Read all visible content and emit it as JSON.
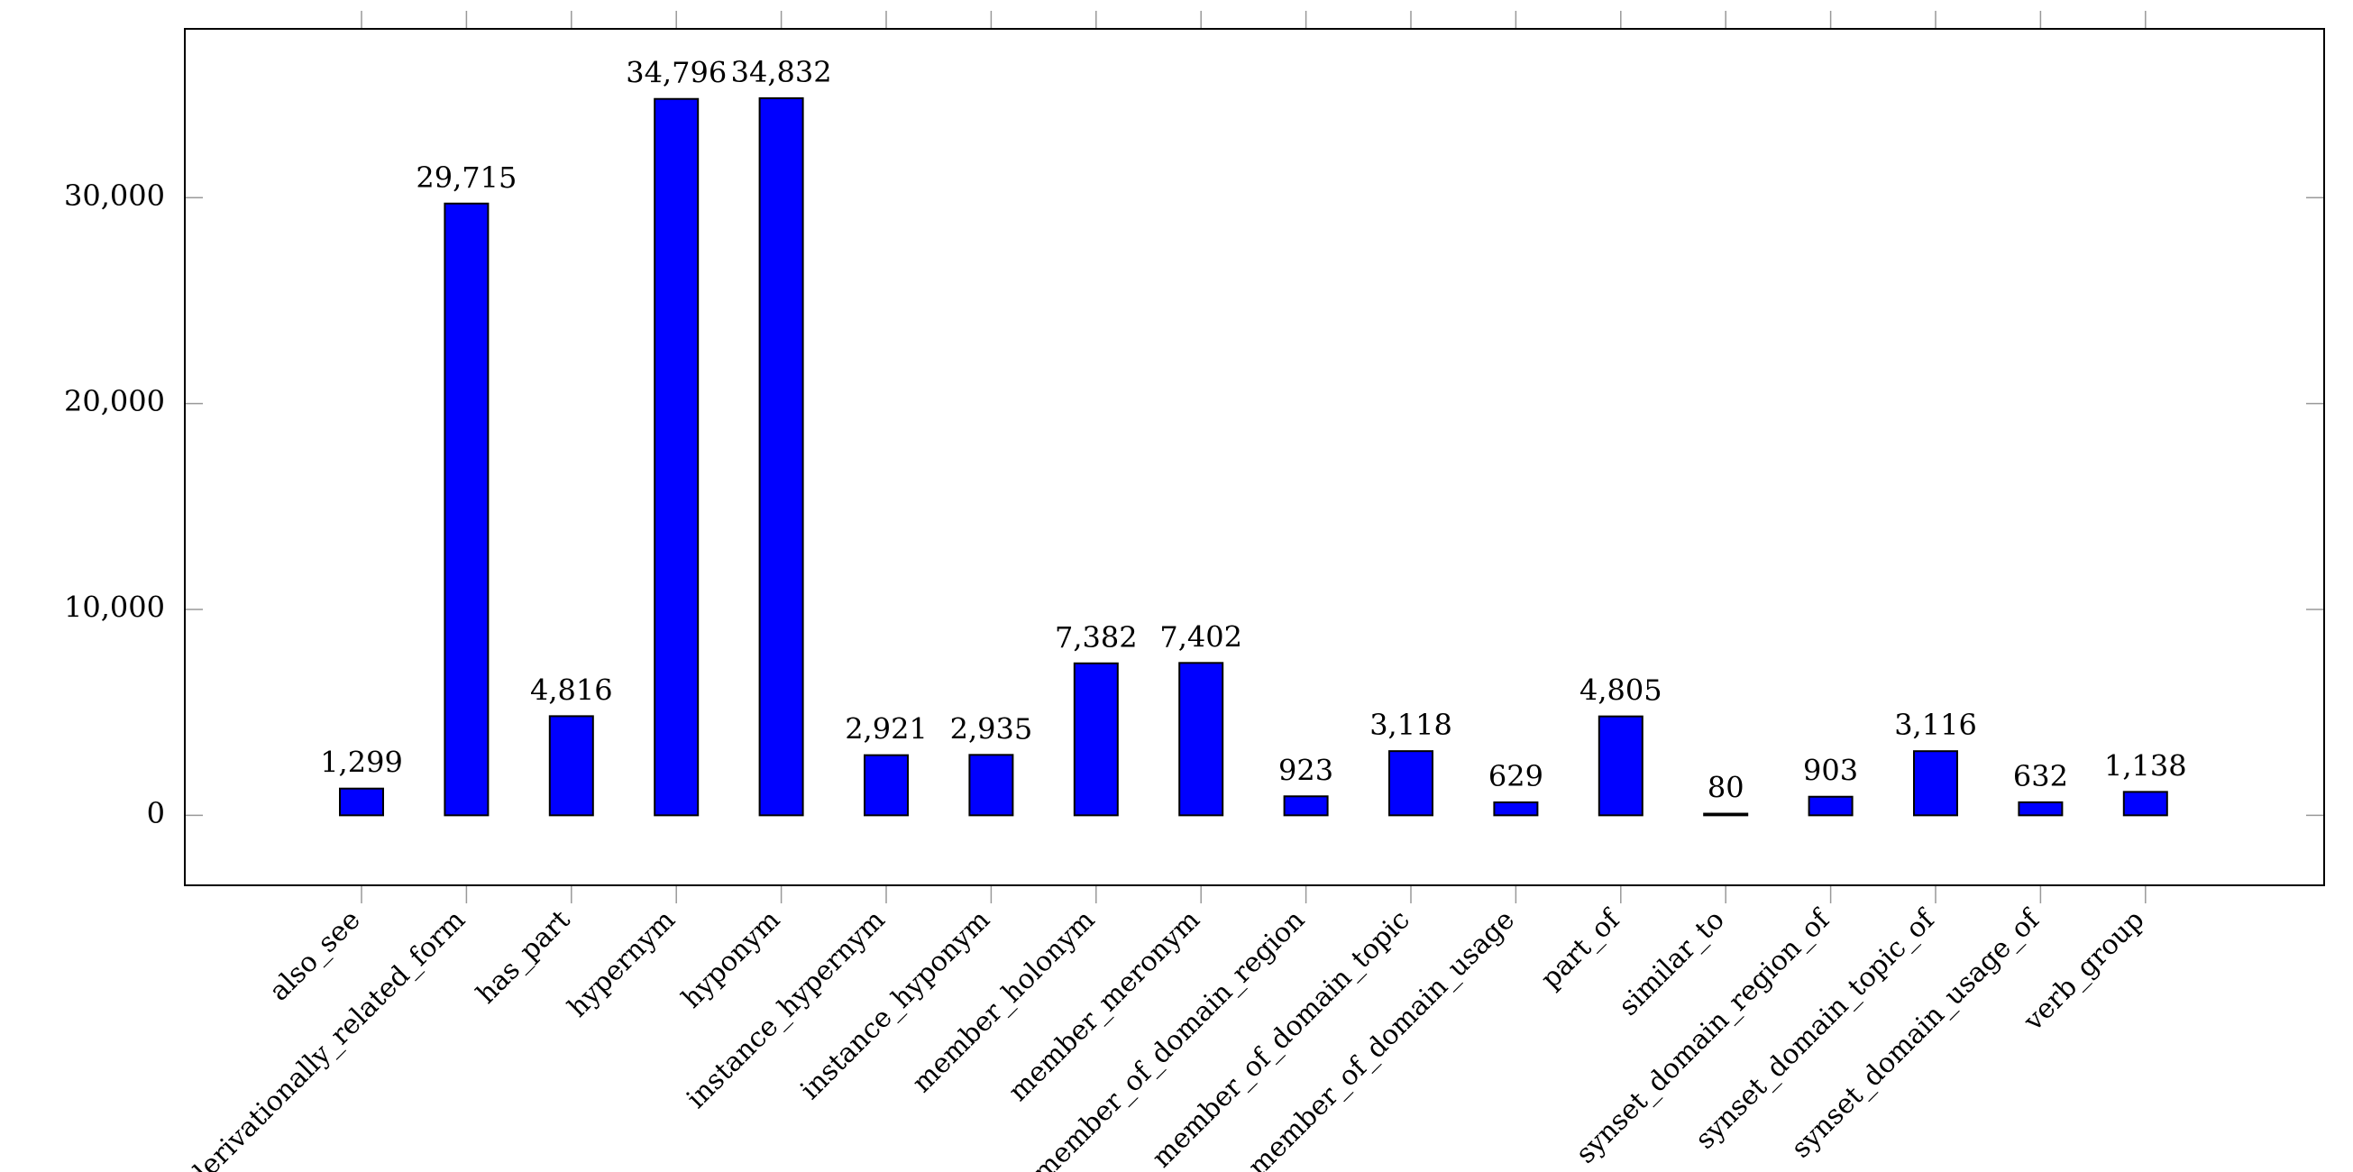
{
  "chart_data": {
    "type": "bar",
    "categories": [
      "also_see",
      "derivationally_related_form",
      "has_part",
      "hypernym",
      "hyponym",
      "instance_hypernym",
      "instance_hyponym",
      "member_holonym",
      "member_meronym",
      "member_of_domain_region",
      "member_of_domain_topic",
      "member_of_domain_usage",
      "part_of",
      "similar_to",
      "synset_domain_region_of",
      "synset_domain_topic_of",
      "synset_domain_usage_of",
      "verb_group"
    ],
    "values": [
      1299,
      29715,
      4816,
      34796,
      34832,
      2921,
      2935,
      7382,
      7402,
      923,
      3118,
      629,
      4805,
      80,
      903,
      3116,
      632,
      1138
    ],
    "value_labels": [
      "1,299",
      "29,715",
      "4,816",
      "34,796",
      "34,832",
      "2,921",
      "2,935",
      "7,382",
      "7,402",
      "923",
      "3,118",
      "629",
      "4,805",
      "80",
      "903",
      "3,116",
      "632",
      "1,138"
    ],
    "ylim": [
      -3400,
      38200
    ],
    "yticks": [
      0,
      10000,
      20000,
      30000
    ],
    "ytick_labels": [
      "0",
      "10,000",
      "20,000",
      "30,000"
    ],
    "bar_color": "#0000ff",
    "bar_edge_color": "#000000",
    "grid": false,
    "legend": "none"
  }
}
